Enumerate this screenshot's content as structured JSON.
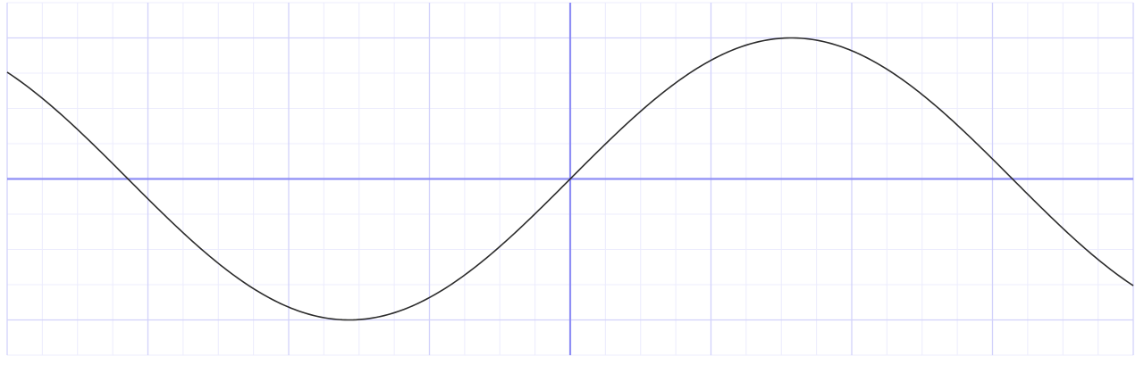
{
  "chart_data": {
    "type": "line",
    "title": "",
    "xlabel": "",
    "ylabel": "",
    "xlim": [
      -4.0,
      4.0
    ],
    "ylim": [
      -1.25,
      1.25
    ],
    "grid": true,
    "minor_grid": true,
    "series": [
      {
        "function": "sin(x)",
        "x": [
          -4.0,
          -3.5,
          -3.14,
          -3.0,
          -2.5,
          -2.0,
          -1.57,
          -1.5,
          -1.0,
          -0.5,
          0.0,
          0.5,
          1.0,
          1.5,
          1.57,
          2.0,
          2.5,
          3.0,
          3.14,
          3.5,
          4.0
        ],
        "values": [
          0.757,
          0.351,
          0.0,
          -0.141,
          -0.598,
          -0.909,
          -1.0,
          -0.997,
          -0.841,
          -0.479,
          0.0,
          0.479,
          0.841,
          0.997,
          1.0,
          0.909,
          0.598,
          0.141,
          0.0,
          -0.351,
          -0.757
        ]
      }
    ]
  },
  "colors": {
    "background": "#ffffff",
    "axis": "#8f8ff5",
    "major_grid": "#d2d2fb",
    "minor_grid": "#ececfd",
    "curve": "#2b2b2b"
  }
}
